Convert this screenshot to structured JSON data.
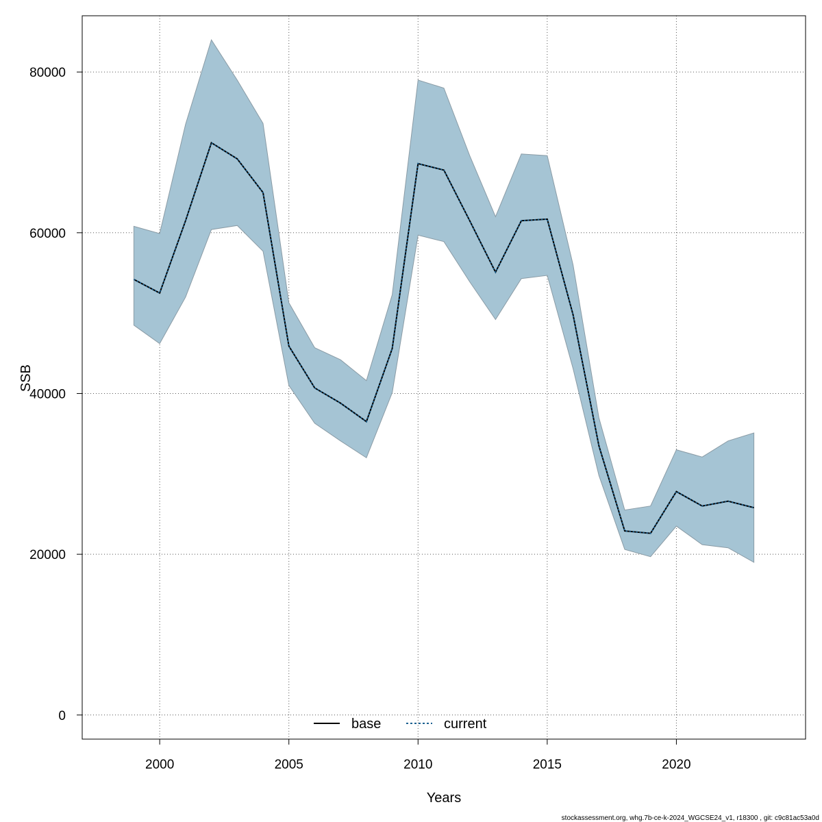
{
  "chart_data": {
    "type": "area",
    "xlabel": "Years",
    "ylabel": "SSB",
    "xlim": [
      1997,
      2025
    ],
    "ylim": [
      -3000,
      87000
    ],
    "xticks": [
      2000,
      2005,
      2010,
      2015,
      2020
    ],
    "yticks": [
      0,
      20000,
      40000,
      60000,
      80000
    ],
    "x_tick_labels": [
      "2000",
      "2005",
      "2010",
      "2015",
      "2020"
    ],
    "y_tick_labels": [
      "0",
      "20000",
      "40000",
      "60000",
      "80000"
    ],
    "grid": true,
    "legend_position": "bottom-center",
    "x": [
      1999,
      2000,
      2001,
      2002,
      2003,
      2004,
      2005,
      2006,
      2007,
      2008,
      2009,
      2010,
      2011,
      2012,
      2013,
      2014,
      2015,
      2016,
      2017,
      2018,
      2019,
      2020,
      2021,
      2022,
      2023
    ],
    "band": {
      "upper": [
        60800,
        59900,
        73500,
        84000,
        79000,
        73600,
        51300,
        45700,
        44200,
        41600,
        52300,
        79000,
        78000,
        69600,
        62000,
        69800,
        69600,
        56000,
        37000,
        25500,
        26000,
        33000,
        32100,
        34100,
        35100
      ],
      "lower": [
        48500,
        46200,
        52000,
        60400,
        60900,
        57700,
        41000,
        36300,
        34100,
        32000,
        40100,
        59700,
        58900,
        53900,
        49200,
        54300,
        54700,
        43100,
        29800,
        20600,
        19700,
        23500,
        21200,
        20800,
        19000
      ],
      "fill_color": "#a5c4d4",
      "edge_color": "#8a9ba5"
    },
    "series": [
      {
        "name": "base",
        "values": [
          54200,
          52500,
          61500,
          71200,
          69200,
          65000,
          45900,
          40700,
          38800,
          36500,
          45600,
          68600,
          67800,
          61500,
          55100,
          61500,
          61700,
          49800,
          33500,
          22900,
          22600,
          27800,
          26000,
          26600,
          25800
        ],
        "color": "#000000",
        "dash": "solid"
      },
      {
        "name": "current",
        "values": [
          54200,
          52500,
          61500,
          71200,
          69200,
          65000,
          45900,
          40700,
          38800,
          36500,
          45600,
          68600,
          67800,
          61500,
          55100,
          61500,
          61700,
          49800,
          33500,
          22900,
          22600,
          27800,
          26000,
          26600,
          25800
        ],
        "color": "#1a6090",
        "dash": "dotted"
      }
    ]
  },
  "footer": {
    "text": "stockassessment.org, whg.7b-ce-k-2024_WGCSE24_v1, r18300 , git: c9c81ac53a0d"
  }
}
